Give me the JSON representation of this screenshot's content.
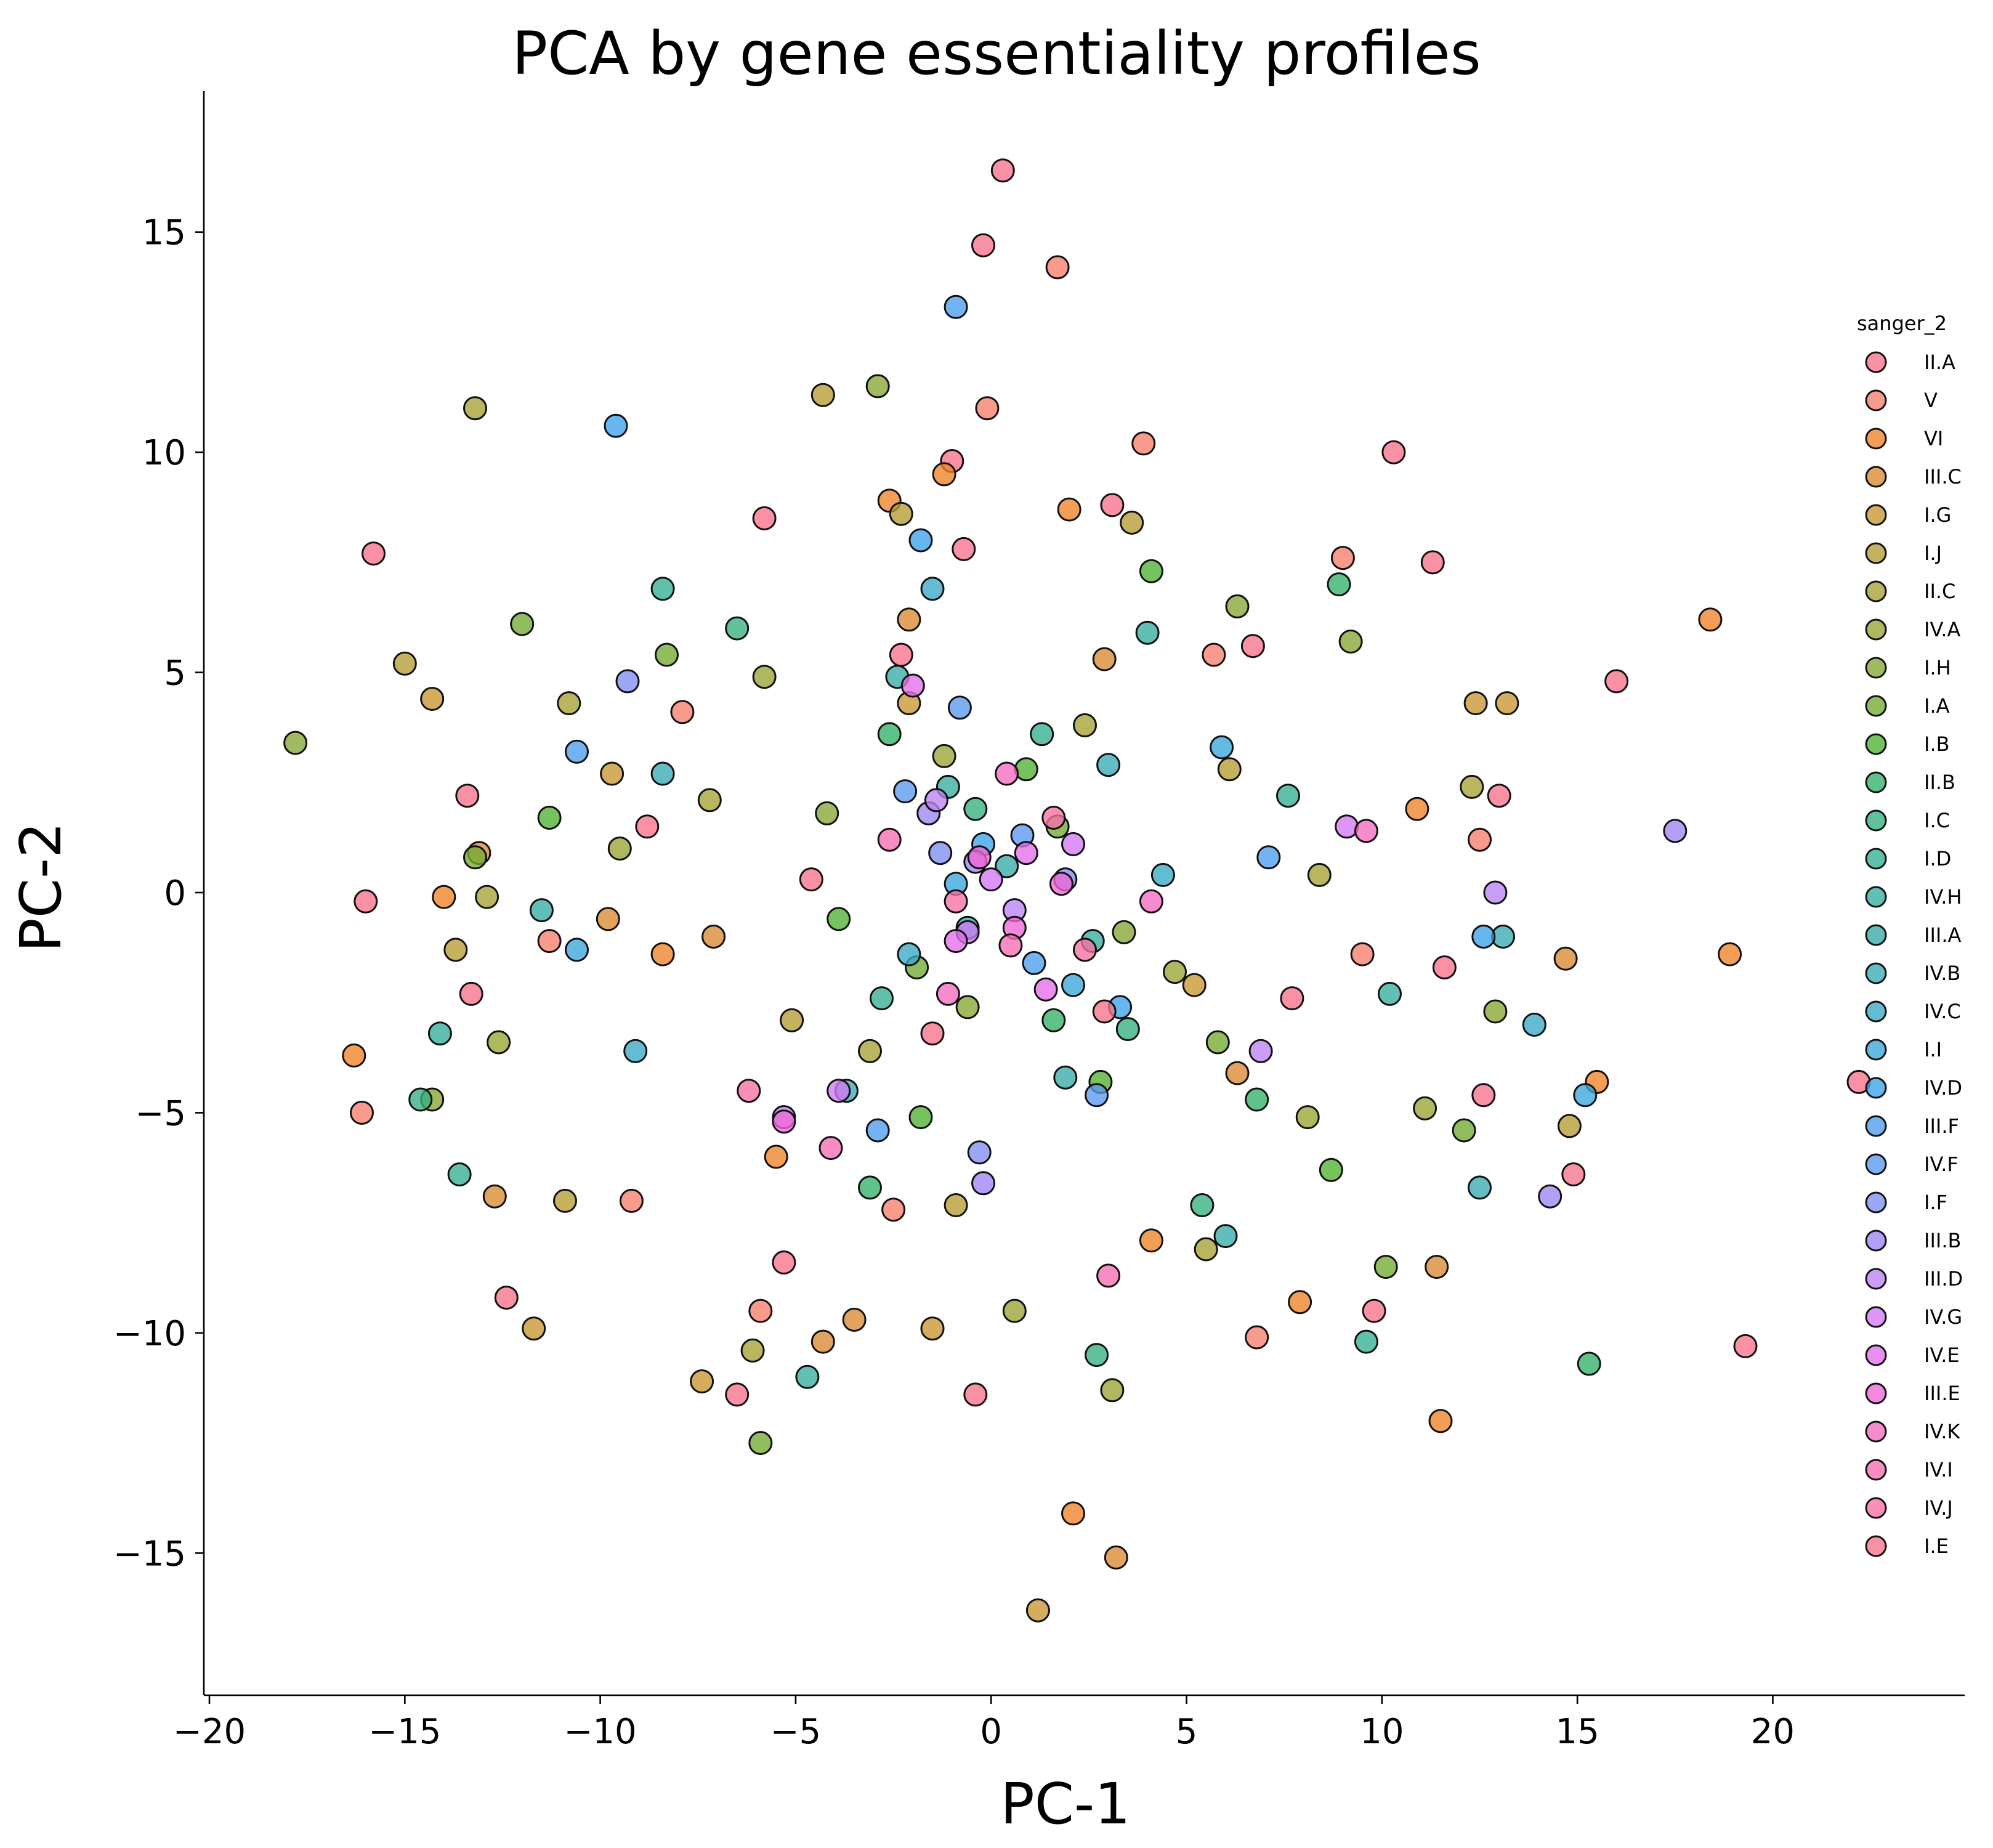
{
  "chart_data": {
    "type": "scatter",
    "title": "PCA by gene essentiality profiles",
    "xlabel": "PC-1",
    "ylabel": "PC-2",
    "xlim": [
      -20,
      24.5
    ],
    "ylim": [
      -18.2,
      18.2
    ],
    "xticks": [
      -20,
      -15,
      -10,
      -5,
      0,
      5,
      10,
      15,
      20
    ],
    "xtick_labels": [
      "−20",
      "−15",
      "−10",
      "−5",
      "0",
      "5",
      "10",
      "15",
      "20"
    ],
    "yticks": [
      -15,
      -10,
      -5,
      0,
      5,
      10,
      15
    ],
    "ytick_labels": [
      "−15",
      "−10",
      "−5",
      "0",
      "5",
      "10",
      "15"
    ],
    "grid": false,
    "legend_title": "sanger_2",
    "legend_position": "right",
    "point_alpha": 0.78,
    "series": [
      {
        "name": "II.A",
        "color": "#f77189",
        "points": [
          [
            0.3,
            16.4
          ],
          [
            -0.2,
            14.7
          ],
          [
            -15.8,
            7.7
          ],
          [
            -1,
            9.8
          ],
          [
            10.3,
            10
          ],
          [
            16,
            4.8
          ],
          [
            -16,
            -0.2
          ],
          [
            -13.4,
            2.2
          ],
          [
            -12.4,
            -9.2
          ],
          [
            -0.4,
            -11.4
          ],
          [
            19.3,
            -10.3
          ],
          [
            11.3,
            7.5
          ],
          [
            -5.8,
            8.5
          ],
          [
            -0.7,
            7.8
          ],
          [
            6.7,
            5.6
          ],
          [
            13,
            2.2
          ],
          [
            11.6,
            -1.7
          ],
          [
            14.9,
            -6.4
          ],
          [
            9.8,
            -9.5
          ],
          [
            -6.5,
            -11.4
          ],
          [
            -5.3,
            -8.4
          ],
          [
            -13.3,
            -2.3
          ],
          [
            12.6,
            -4.6
          ],
          [
            3.1,
            8.8
          ],
          [
            -2.3,
            5.4
          ],
          [
            7.7,
            -2.4
          ],
          [
            -8.8,
            1.5
          ]
        ]
      },
      {
        "name": "V",
        "color": "#f67d6b",
        "points": [
          [
            1.7,
            14.2
          ],
          [
            3.9,
            10.2
          ],
          [
            -0.1,
            11
          ],
          [
            9,
            7.6
          ],
          [
            -9.2,
            -7
          ],
          [
            -16.1,
            -5
          ],
          [
            6.8,
            -10.1
          ],
          [
            12.5,
            1.2
          ],
          [
            -5.9,
            -9.5
          ],
          [
            -7.9,
            4.1
          ],
          [
            -2.5,
            -7.2
          ],
          [
            5.7,
            5.4
          ],
          [
            9.5,
            -1.4
          ],
          [
            -11.3,
            -1.1
          ]
        ]
      },
      {
        "name": "VI",
        "color": "#f08326",
        "points": [
          [
            18.4,
            6.2
          ],
          [
            -16.3,
            -3.7
          ],
          [
            18.9,
            -1.4
          ],
          [
            2.1,
            -14.1
          ],
          [
            11.5,
            -12
          ],
          [
            -1.2,
            9.5
          ],
          [
            -2.6,
            8.9
          ],
          [
            2,
            8.7
          ],
          [
            -8.4,
            -1.4
          ],
          [
            7.9,
            -9.3
          ],
          [
            15.5,
            -4.3
          ],
          [
            -14,
            -0.1
          ],
          [
            -5.5,
            -6
          ],
          [
            4.1,
            -7.9
          ],
          [
            10.9,
            1.9
          ]
        ]
      },
      {
        "name": "III.C",
        "color": "#d8892f",
        "points": [
          [
            3.2,
            -15.1
          ],
          [
            -4.3,
            -10.2
          ],
          [
            11.4,
            -8.5
          ],
          [
            -12.7,
            -6.9
          ],
          [
            -9.8,
            -0.6
          ],
          [
            14.7,
            -1.5
          ],
          [
            -13.1,
            0.9
          ],
          [
            -3.5,
            -9.7
          ],
          [
            2.9,
            5.3
          ],
          [
            -7.1,
            -1
          ],
          [
            6.3,
            -4.1
          ],
          [
            -2.1,
            6.2
          ]
        ]
      },
      {
        "name": "I.G",
        "color": "#c89631",
        "points": [
          [
            1.2,
            -16.3
          ],
          [
            -1.5,
            -9.9
          ],
          [
            -11.7,
            -9.9
          ],
          [
            -9.7,
            2.7
          ],
          [
            13.2,
            4.3
          ],
          [
            -14.3,
            4.4
          ],
          [
            12.4,
            4.3
          ],
          [
            -7.4,
            -11.1
          ],
          [
            5.2,
            -2.1
          ],
          [
            -2.1,
            4.3
          ]
        ]
      },
      {
        "name": "I.J",
        "color": "#b69c31",
        "points": [
          [
            -4.3,
            11.3
          ],
          [
            3.6,
            8.4
          ],
          [
            -2.3,
            8.6
          ],
          [
            -15,
            5.2
          ],
          [
            -10.9,
            -7
          ],
          [
            14.8,
            -5.3
          ],
          [
            -13.7,
            -1.3
          ],
          [
            -0.9,
            -7.1
          ],
          [
            6.1,
            2.8
          ],
          [
            -5.1,
            -2.9
          ]
        ]
      },
      {
        "name": "II.C",
        "color": "#a7a032",
        "points": [
          [
            -13.2,
            11
          ],
          [
            -10.8,
            4.3
          ],
          [
            12.3,
            2.4
          ],
          [
            -12.9,
            -0.1
          ],
          [
            -6.1,
            -10.4
          ],
          [
            5.5,
            -8.1
          ],
          [
            -3.1,
            -3.6
          ],
          [
            2.4,
            3.8
          ],
          [
            -7.2,
            2.1
          ],
          [
            8.4,
            0.4
          ]
        ]
      },
      {
        "name": "IV.A",
        "color": "#99a332",
        "points": [
          [
            -12.6,
            -3.4
          ],
          [
            -9.5,
            1
          ],
          [
            11.1,
            -4.9
          ],
          [
            8.1,
            -5.1
          ],
          [
            3.1,
            -11.3
          ],
          [
            0.6,
            -9.5
          ],
          [
            -1.2,
            3.1
          ],
          [
            4.7,
            -1.8
          ],
          [
            -5.8,
            4.9
          ]
        ]
      },
      {
        "name": "I.H",
        "color": "#87a732",
        "points": [
          [
            -17.8,
            3.4
          ],
          [
            -2.9,
            11.5
          ],
          [
            -14.3,
            -4.7
          ],
          [
            9.2,
            5.7
          ],
          [
            12.9,
            -2.7
          ],
          [
            6.3,
            6.5
          ],
          [
            -0.6,
            -2.6
          ],
          [
            3.4,
            -0.9
          ],
          [
            -4.2,
            1.8
          ]
        ]
      },
      {
        "name": "I.A",
        "color": "#73aa32",
        "points": [
          [
            -12,
            6.1
          ],
          [
            -13.2,
            0.8
          ],
          [
            -5.9,
            -12.5
          ],
          [
            10.1,
            -8.5
          ],
          [
            12.1,
            -5.4
          ],
          [
            -8.3,
            5.4
          ],
          [
            -1.9,
            -1.7
          ],
          [
            1.7,
            1.5
          ],
          [
            5.8,
            -3.4
          ]
        ]
      },
      {
        "name": "I.B",
        "color": "#50b131",
        "points": [
          [
            -11.3,
            1.7
          ],
          [
            8.7,
            -6.3
          ],
          [
            4.1,
            7.3
          ],
          [
            -1.8,
            -5.1
          ],
          [
            2.8,
            -4.3
          ],
          [
            -3.9,
            -0.6
          ],
          [
            0.9,
            2.8
          ]
        ]
      },
      {
        "name": "II.B",
        "color": "#32b166",
        "points": [
          [
            15.3,
            -10.7
          ],
          [
            -3.1,
            -6.7
          ],
          [
            8.9,
            7
          ],
          [
            6.8,
            -4.7
          ],
          [
            -2.6,
            3.6
          ],
          [
            1.6,
            -2.9
          ]
        ]
      },
      {
        "name": "I.C",
        "color": "#33af7f",
        "points": [
          [
            2.7,
            -10.5
          ],
          [
            -14.6,
            -4.7
          ],
          [
            -6.5,
            6
          ],
          [
            5.4,
            -7.1
          ],
          [
            -0.4,
            1.9
          ],
          [
            3.5,
            -3.1
          ]
        ]
      },
      {
        "name": "I.D",
        "color": "#34ae91",
        "points": [
          [
            9.6,
            -10.2
          ],
          [
            -13.6,
            -6.4
          ],
          [
            -8.4,
            6.9
          ],
          [
            7.6,
            2.2
          ],
          [
            -2.8,
            -2.4
          ],
          [
            1.3,
            3.6
          ]
        ]
      },
      {
        "name": "IV.H",
        "color": "#35ad9e",
        "points": [
          [
            -4.7,
            -11
          ],
          [
            -14.1,
            -3.2
          ],
          [
            10.2,
            -2.3
          ],
          [
            4,
            5.9
          ],
          [
            -1.1,
            2.4
          ],
          [
            2.6,
            -1.1
          ]
        ]
      },
      {
        "name": "III.A",
        "color": "#36aca8",
        "points": [
          [
            6,
            -7.8
          ],
          [
            -11.5,
            -0.4
          ],
          [
            -2.4,
            4.9
          ],
          [
            1.9,
            -4.2
          ],
          [
            0.4,
            0.6
          ]
        ]
      },
      {
        "name": "IV.B",
        "color": "#37abb4",
        "points": [
          [
            12.5,
            -6.7
          ],
          [
            -8.4,
            2.7
          ],
          [
            13.1,
            -1
          ],
          [
            -3.7,
            -4.5
          ],
          [
            3,
            2.9
          ],
          [
            -0.6,
            -0.8
          ]
        ]
      },
      {
        "name": "IV.C",
        "color": "#38a9c5",
        "points": [
          [
            13.9,
            -3
          ],
          [
            -9.1,
            -3.6
          ],
          [
            -1.5,
            6.9
          ],
          [
            4.4,
            0.4
          ],
          [
            -2.1,
            -1.4
          ]
        ]
      },
      {
        "name": "I.I",
        "color": "#3aa6dd",
        "points": [
          [
            15.2,
            -4.6
          ],
          [
            -10.6,
            -1.3
          ],
          [
            5.9,
            3.3
          ],
          [
            -0.9,
            0.2
          ],
          [
            2.1,
            -2.1
          ]
        ]
      },
      {
        "name": "IV.D",
        "color": "#3ba3ec",
        "points": [
          [
            -9.6,
            10.6
          ],
          [
            12.6,
            -1
          ],
          [
            -1.8,
            8
          ],
          [
            3.3,
            -2.6
          ],
          [
            -0.2,
            1.1
          ]
        ]
      },
      {
        "name": "III.F",
        "color": "#4b9dee",
        "points": [
          [
            -0.9,
            13.3
          ],
          [
            -10.6,
            3.2
          ],
          [
            7.1,
            0.8
          ],
          [
            -2.9,
            -5.4
          ],
          [
            1.1,
            -1.6
          ]
        ]
      },
      {
        "name": "IV.F",
        "color": "#5a98f0",
        "points": [
          [
            -0.8,
            4.2
          ],
          [
            2.7,
            -4.6
          ],
          [
            -2.2,
            2.3
          ],
          [
            0.8,
            1.3
          ]
        ]
      },
      {
        "name": "I.F",
        "color": "#7f8df2",
        "points": [
          [
            -9.3,
            4.8
          ],
          [
            -0.3,
            -5.9
          ],
          [
            -1.3,
            0.9
          ],
          [
            1.9,
            0.3
          ]
        ]
      },
      {
        "name": "III.B",
        "color": "#9d84f4",
        "points": [
          [
            17.5,
            1.4
          ],
          [
            14.3,
            -6.9
          ],
          [
            -0.2,
            -6.6
          ],
          [
            -1.6,
            1.8
          ],
          [
            -0.4,
            0.7
          ]
        ]
      },
      {
        "name": "III.D",
        "color": "#bb83f4",
        "points": [
          [
            12.9,
            0
          ],
          [
            -5.3,
            -5.1
          ],
          [
            6.9,
            -3.6
          ],
          [
            -1.4,
            2.1
          ],
          [
            0.6,
            -0.4
          ]
        ]
      },
      {
        "name": "IV.G",
        "color": "#d479f3",
        "points": [
          [
            9.1,
            1.5
          ],
          [
            -3.9,
            -4.5
          ],
          [
            -0.6,
            -0.9
          ],
          [
            2.1,
            1.1
          ],
          [
            0,
            0.3
          ]
        ]
      },
      {
        "name": "IV.E",
        "color": "#e36ee9",
        "points": [
          [
            -2,
            4.7
          ],
          [
            1.4,
            -2.2
          ],
          [
            -0.9,
            -1.1
          ],
          [
            0.9,
            0.9
          ]
        ]
      },
      {
        "name": "III.E",
        "color": "#f067d5",
        "points": [
          [
            -0.3,
            0.8
          ],
          [
            1.8,
            0.2
          ],
          [
            -5.3,
            -5.2
          ],
          [
            0.6,
            -0.8
          ]
        ]
      },
      {
        "name": "IV.K",
        "color": "#f56ac3",
        "points": [
          [
            9.6,
            1.4
          ],
          [
            -1.1,
            -2.3
          ],
          [
            0.4,
            2.7
          ],
          [
            4.1,
            -0.2
          ]
        ]
      },
      {
        "name": "IV.I",
        "color": "#f66db4",
        "points": [
          [
            3,
            -8.7
          ],
          [
            -4.1,
            -5.8
          ],
          [
            0.5,
            -1.2
          ],
          [
            -2.6,
            1.2
          ]
        ]
      },
      {
        "name": "IV.J",
        "color": "#f770a4",
        "points": [
          [
            -6.2,
            -4.5
          ],
          [
            1.6,
            1.7
          ],
          [
            -0.9,
            -0.2
          ],
          [
            2.4,
            -1.3
          ]
        ]
      },
      {
        "name": "I.E",
        "color": "#f77189",
        "points": [
          [
            22.2,
            -4.3
          ],
          [
            -4.6,
            0.3
          ],
          [
            2.9,
            -2.7
          ],
          [
            -1.5,
            -3.2
          ]
        ]
      }
    ]
  }
}
